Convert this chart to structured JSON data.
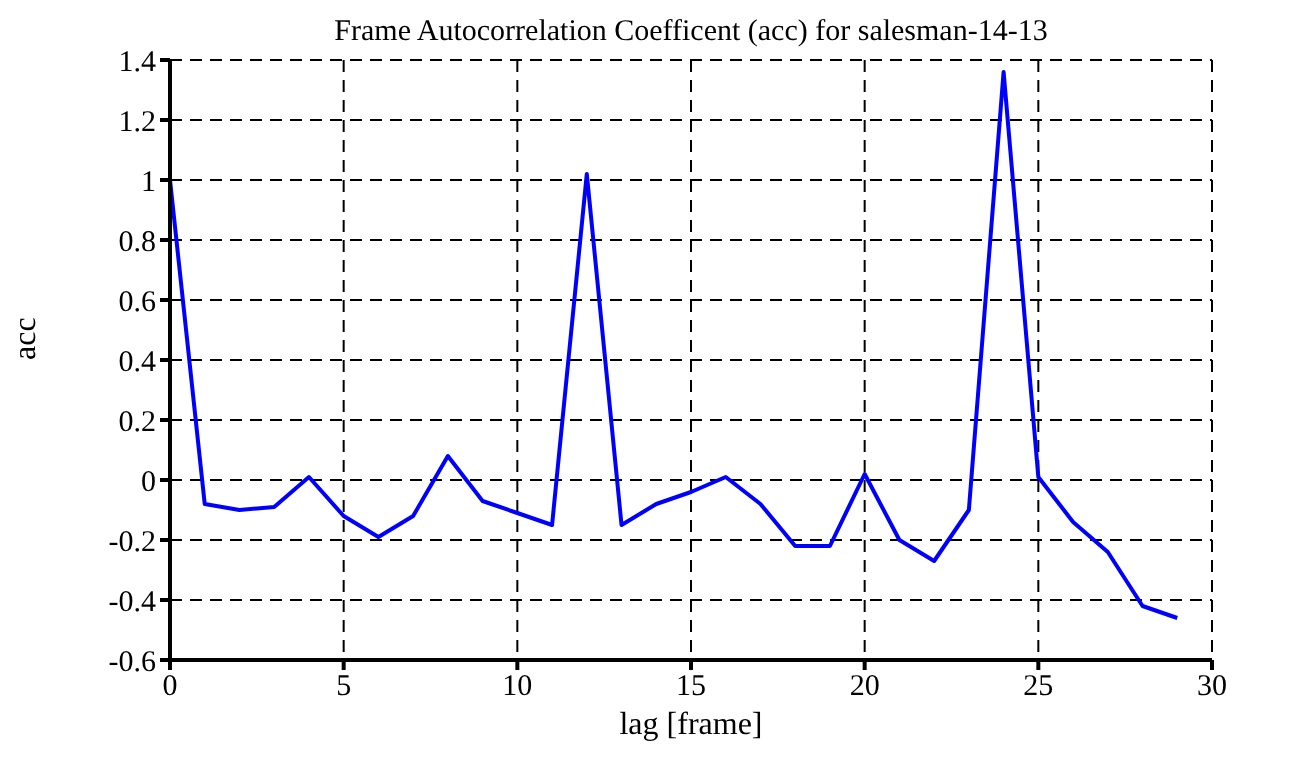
{
  "chart_data": {
    "type": "line",
    "title": "Frame Autocorrelation Coefficent (acc) for salesman-14-13",
    "xlabel": "lag [frame]",
    "ylabel": "acc",
    "x": [
      0,
      1,
      2,
      3,
      4,
      5,
      6,
      7,
      8,
      9,
      10,
      11,
      12,
      13,
      14,
      15,
      16,
      17,
      18,
      19,
      20,
      21,
      22,
      23,
      24,
      25,
      26,
      27,
      28,
      29
    ],
    "series": [
      {
        "color": "#0000ff",
        "values": [
          1.0,
          -0.08,
          -0.1,
          -0.09,
          0.01,
          -0.12,
          -0.19,
          -0.12,
          0.08,
          -0.07,
          -0.11,
          -0.15,
          1.02,
          -0.15,
          -0.08,
          -0.04,
          0.01,
          -0.08,
          -0.22,
          -0.22,
          0.02,
          -0.2,
          -0.27,
          -0.1,
          1.36,
          0.01,
          -0.14,
          -0.24,
          -0.42,
          -0.46
        ]
      }
    ],
    "xlim": [
      0,
      30
    ],
    "xticks": [
      0,
      5,
      10,
      15,
      20,
      25,
      30
    ],
    "ylim": [
      -0.6,
      1.4
    ],
    "yticks": [
      -0.6,
      -0.4,
      -0.2,
      0,
      0.2,
      0.4,
      0.6,
      0.8,
      1,
      1.2,
      1.4
    ],
    "grid": true,
    "legend": false,
    "marker": "none",
    "line_style": "solid"
  }
}
